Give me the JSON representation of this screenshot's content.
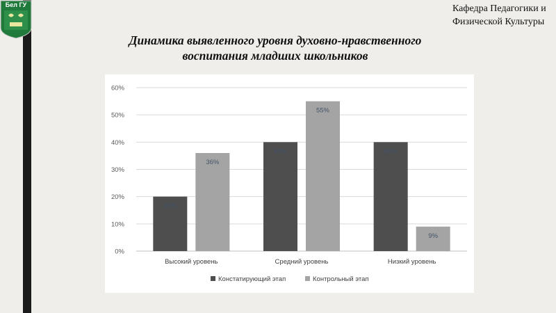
{
  "header": {
    "logo_text": "Бел ГУ",
    "department_line1": "Кафедра Педагогики и",
    "department_line2": "Физической Культуры",
    "title_line1": "Динамика выявленного уровня духовно-нравственного",
    "title_line2": "воспитания младших школьников"
  },
  "colors": {
    "background": "#efeeea",
    "left_bar": "#1b1b1b",
    "logo_green": "#1f7a3c",
    "series1": "#4e4e4e",
    "series2": "#a4a4a4"
  },
  "chart_data": {
    "type": "bar",
    "title": "",
    "categories": [
      "Высокий уровень",
      "Средний уровень",
      "Низкий уровень"
    ],
    "series": [
      {
        "name": "Констатирующий этап",
        "values": [
          20,
          40,
          40
        ],
        "labels": [
          "20%",
          "40%",
          "40%"
        ]
      },
      {
        "name": "Контрольный этап",
        "values": [
          36,
          55,
          9
        ],
        "labels": [
          "36%",
          "55%",
          "9%"
        ]
      }
    ],
    "ylim": [
      0,
      60
    ],
    "yticks": [
      "0%",
      "10%",
      "20%",
      "30%",
      "40%",
      "50%",
      "60%"
    ],
    "grid": true,
    "legend": "bottom"
  }
}
